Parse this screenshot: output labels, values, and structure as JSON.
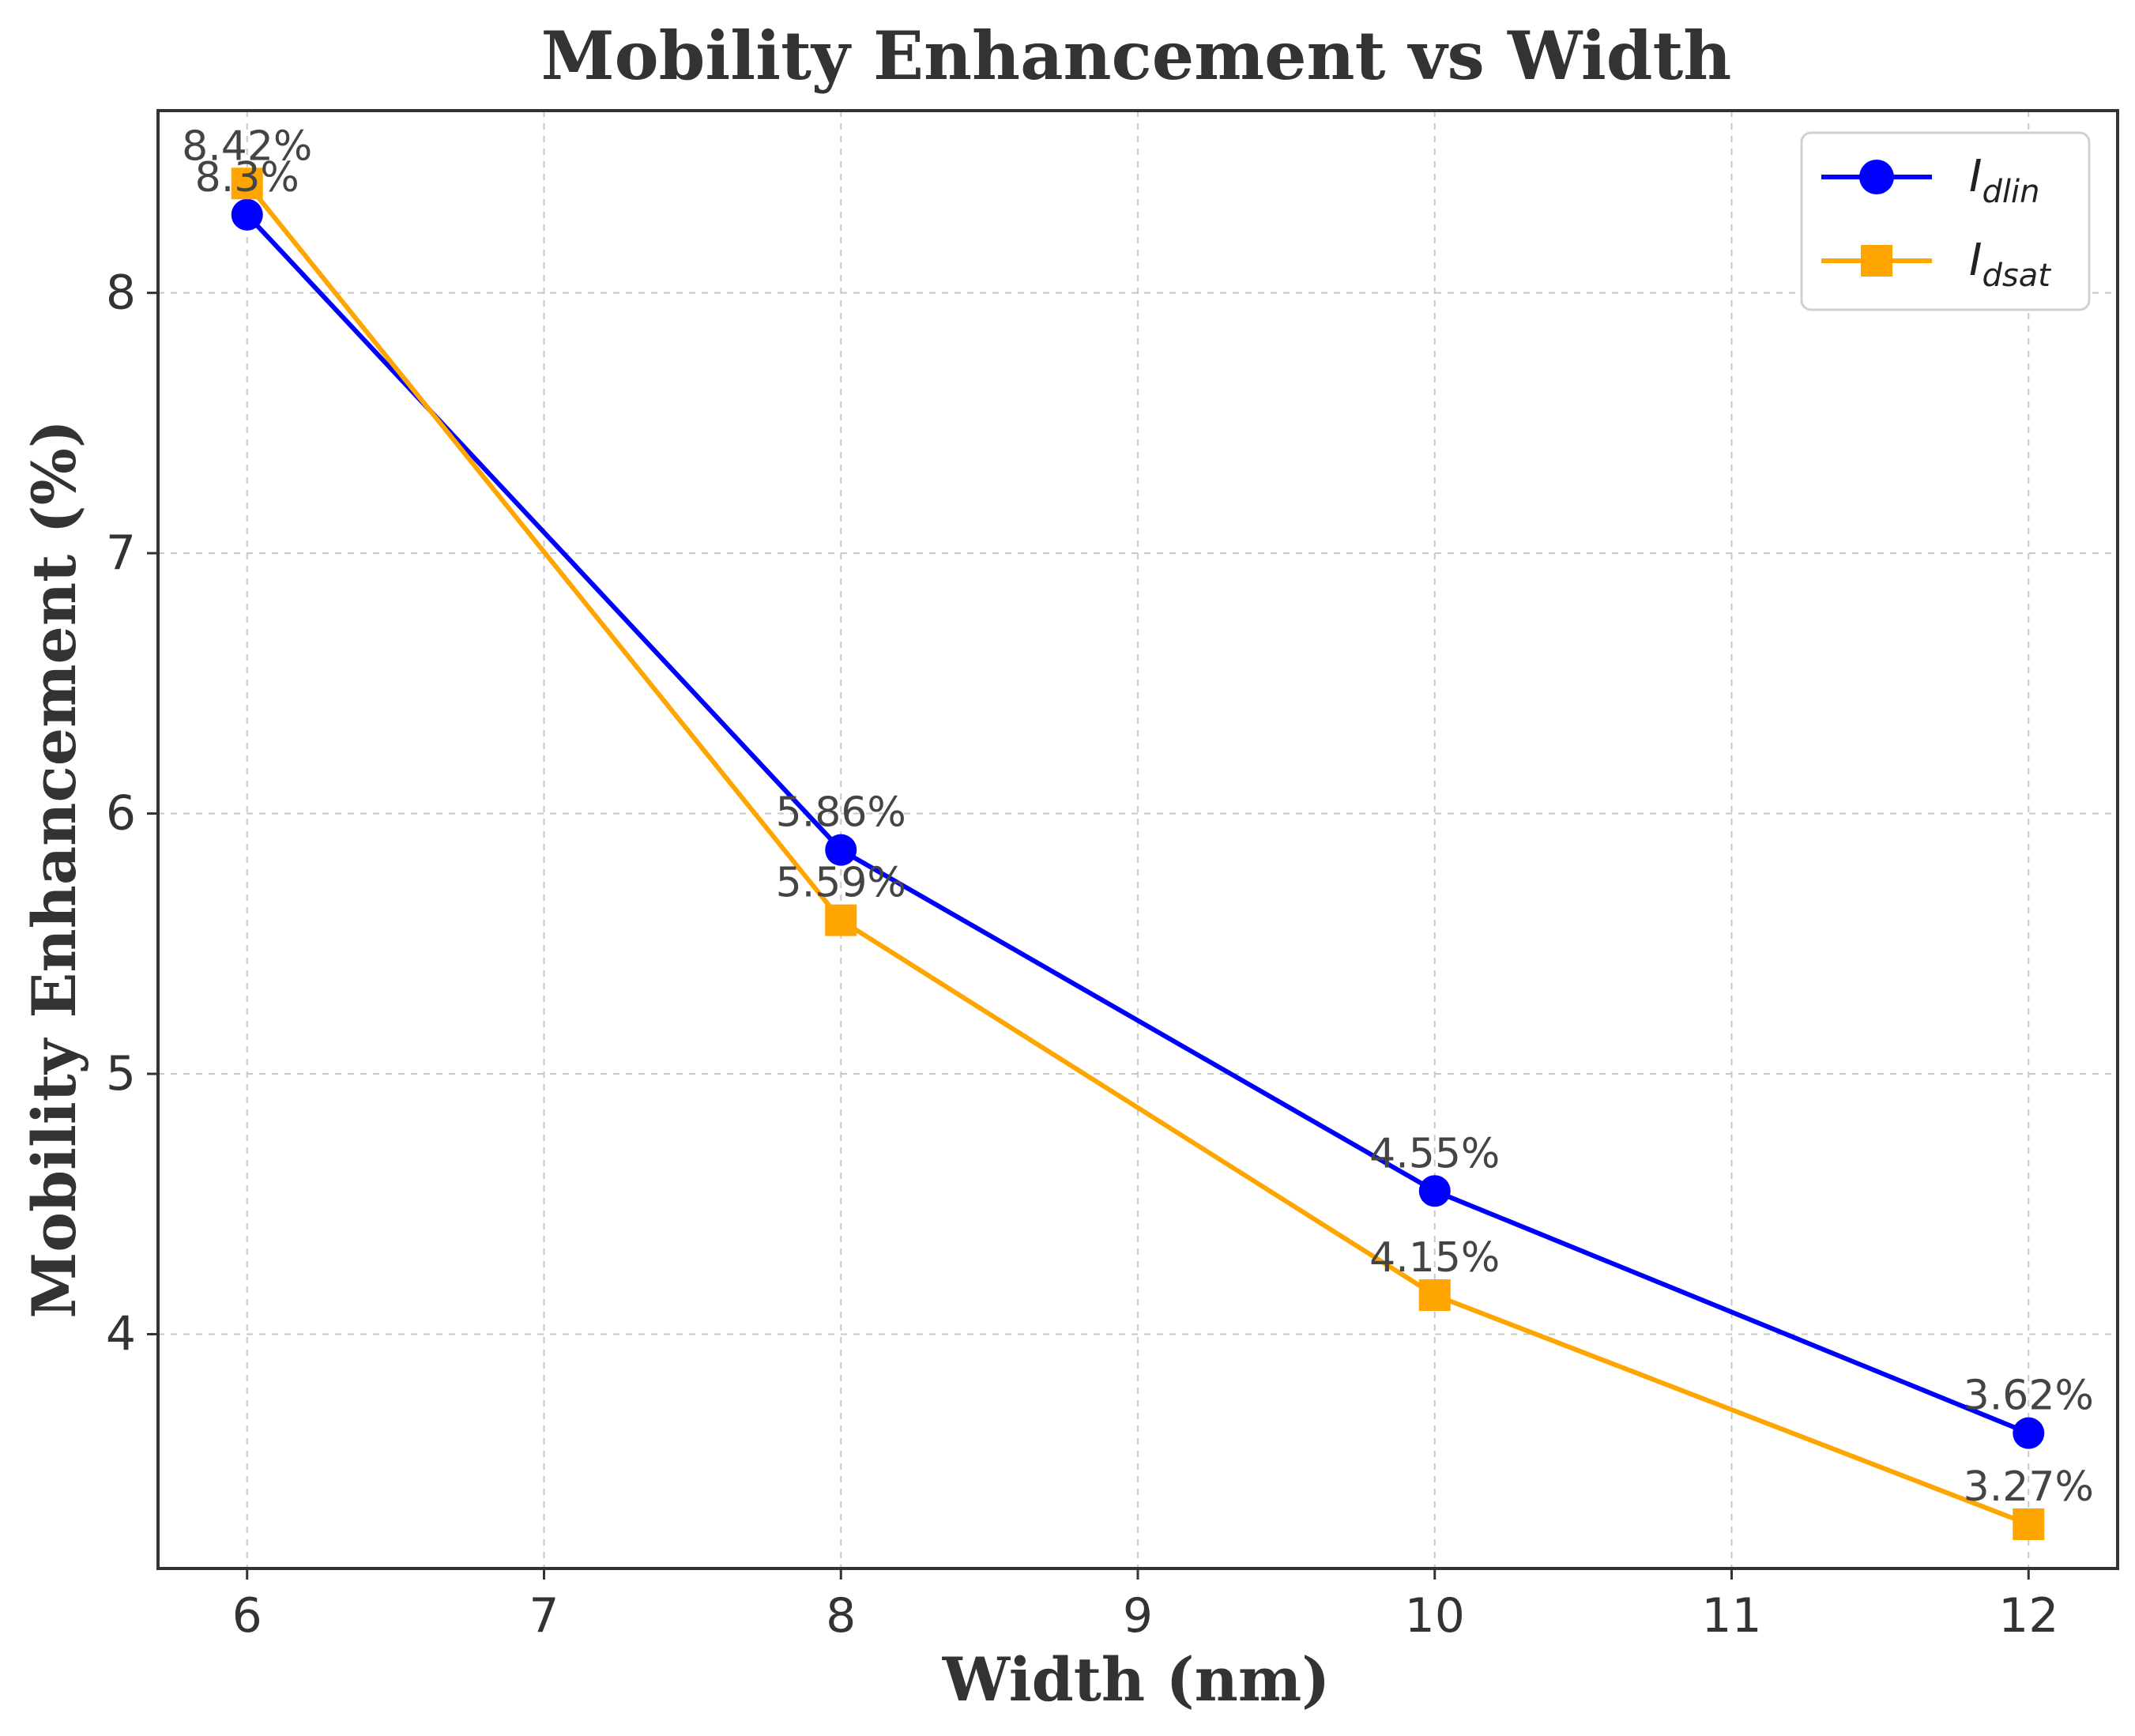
{
  "chart_data": {
    "type": "line",
    "title": "Mobility Enhancement vs Width",
    "xlabel": "Width (nm)",
    "ylabel": "Mobility Enhancement (%)",
    "x": [
      6,
      8,
      10,
      12
    ],
    "xlim": [
      5.7,
      12.3
    ],
    "ylim": [
      3.1,
      8.7
    ],
    "xticks": [
      6,
      7,
      8,
      9,
      10,
      11,
      12
    ],
    "yticks": [
      4,
      5,
      6,
      7,
      8
    ],
    "grid": true,
    "legend_position": "top-right",
    "series": [
      {
        "name": "I_dlin",
        "legend_main": "I",
        "legend_sub": "dlin",
        "color": "#0000ff",
        "marker": "circle",
        "values": [
          8.3,
          5.86,
          4.55,
          3.62
        ],
        "labels": [
          "8.3%",
          "5.86%",
          "4.55%",
          "3.62%"
        ]
      },
      {
        "name": "I_dsat",
        "legend_main": "I",
        "legend_sub": "dsat",
        "color": "#ffa500",
        "marker": "square",
        "values": [
          8.42,
          5.59,
          4.15,
          3.27
        ],
        "labels": [
          "8.42%",
          "5.59%",
          "4.15%",
          "3.27%"
        ]
      }
    ]
  }
}
